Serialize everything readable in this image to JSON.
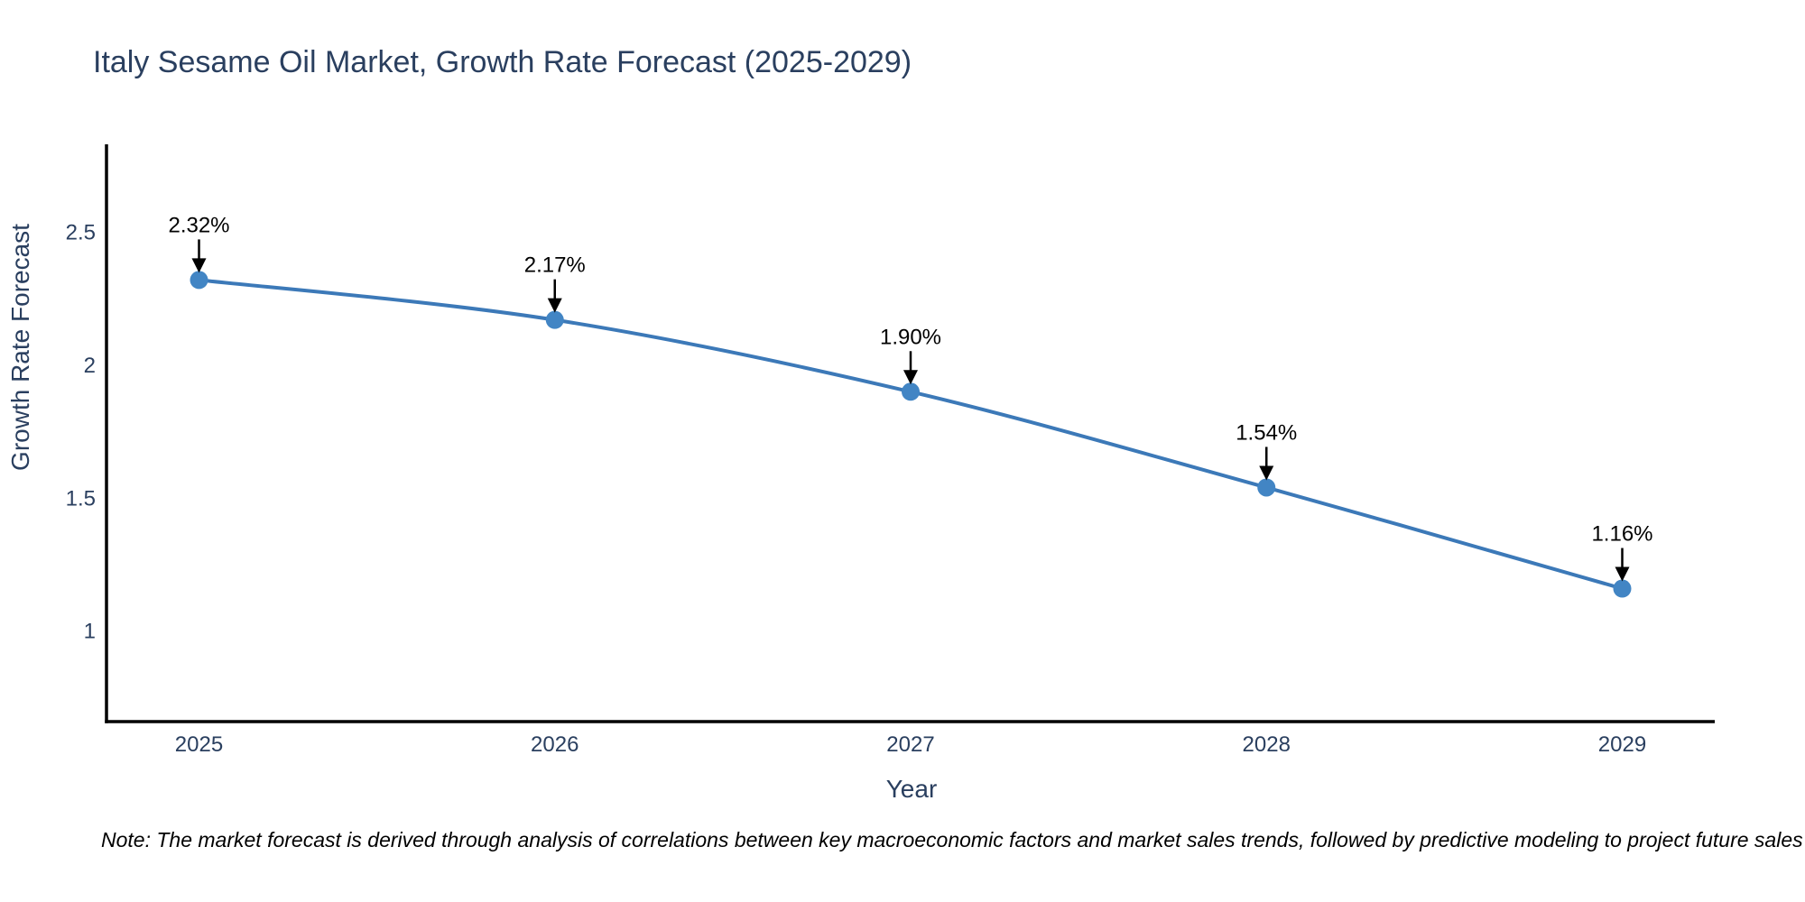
{
  "note": "Note: The market forecast is derived through analysis of correlations between key macroeconomic factors and market sales trends, followed by predictive modeling to project future sales",
  "chart_data": {
    "type": "line",
    "title": "Italy Sesame Oil Market, Growth Rate Forecast (2025-2029)",
    "xlabel": "Year",
    "ylabel": "Growth Rate Forecast",
    "x": [
      2025,
      2026,
      2027,
      2028,
      2029
    ],
    "values": [
      2.32,
      2.17,
      1.9,
      1.54,
      1.16
    ],
    "point_labels": [
      "2.32%",
      "2.17%",
      "1.90%",
      "1.54%",
      "1.16%"
    ],
    "yticks": [
      1,
      1.5,
      2,
      2.5
    ],
    "ylim": [
      0.66,
      2.83
    ],
    "xlim": [
      2024.74,
      2029.26
    ],
    "grid": false,
    "legend_position": "none",
    "line_shape": "spline",
    "colors": {
      "line": "#3c79b8",
      "marker": "#4285c4",
      "title_text": "#2a3f5f",
      "axis_text": "#2a3f5f",
      "axis_line": "#000000",
      "annotation_text": "#000000",
      "annotation_arrow": "#000000",
      "background": "#ffffff"
    }
  }
}
